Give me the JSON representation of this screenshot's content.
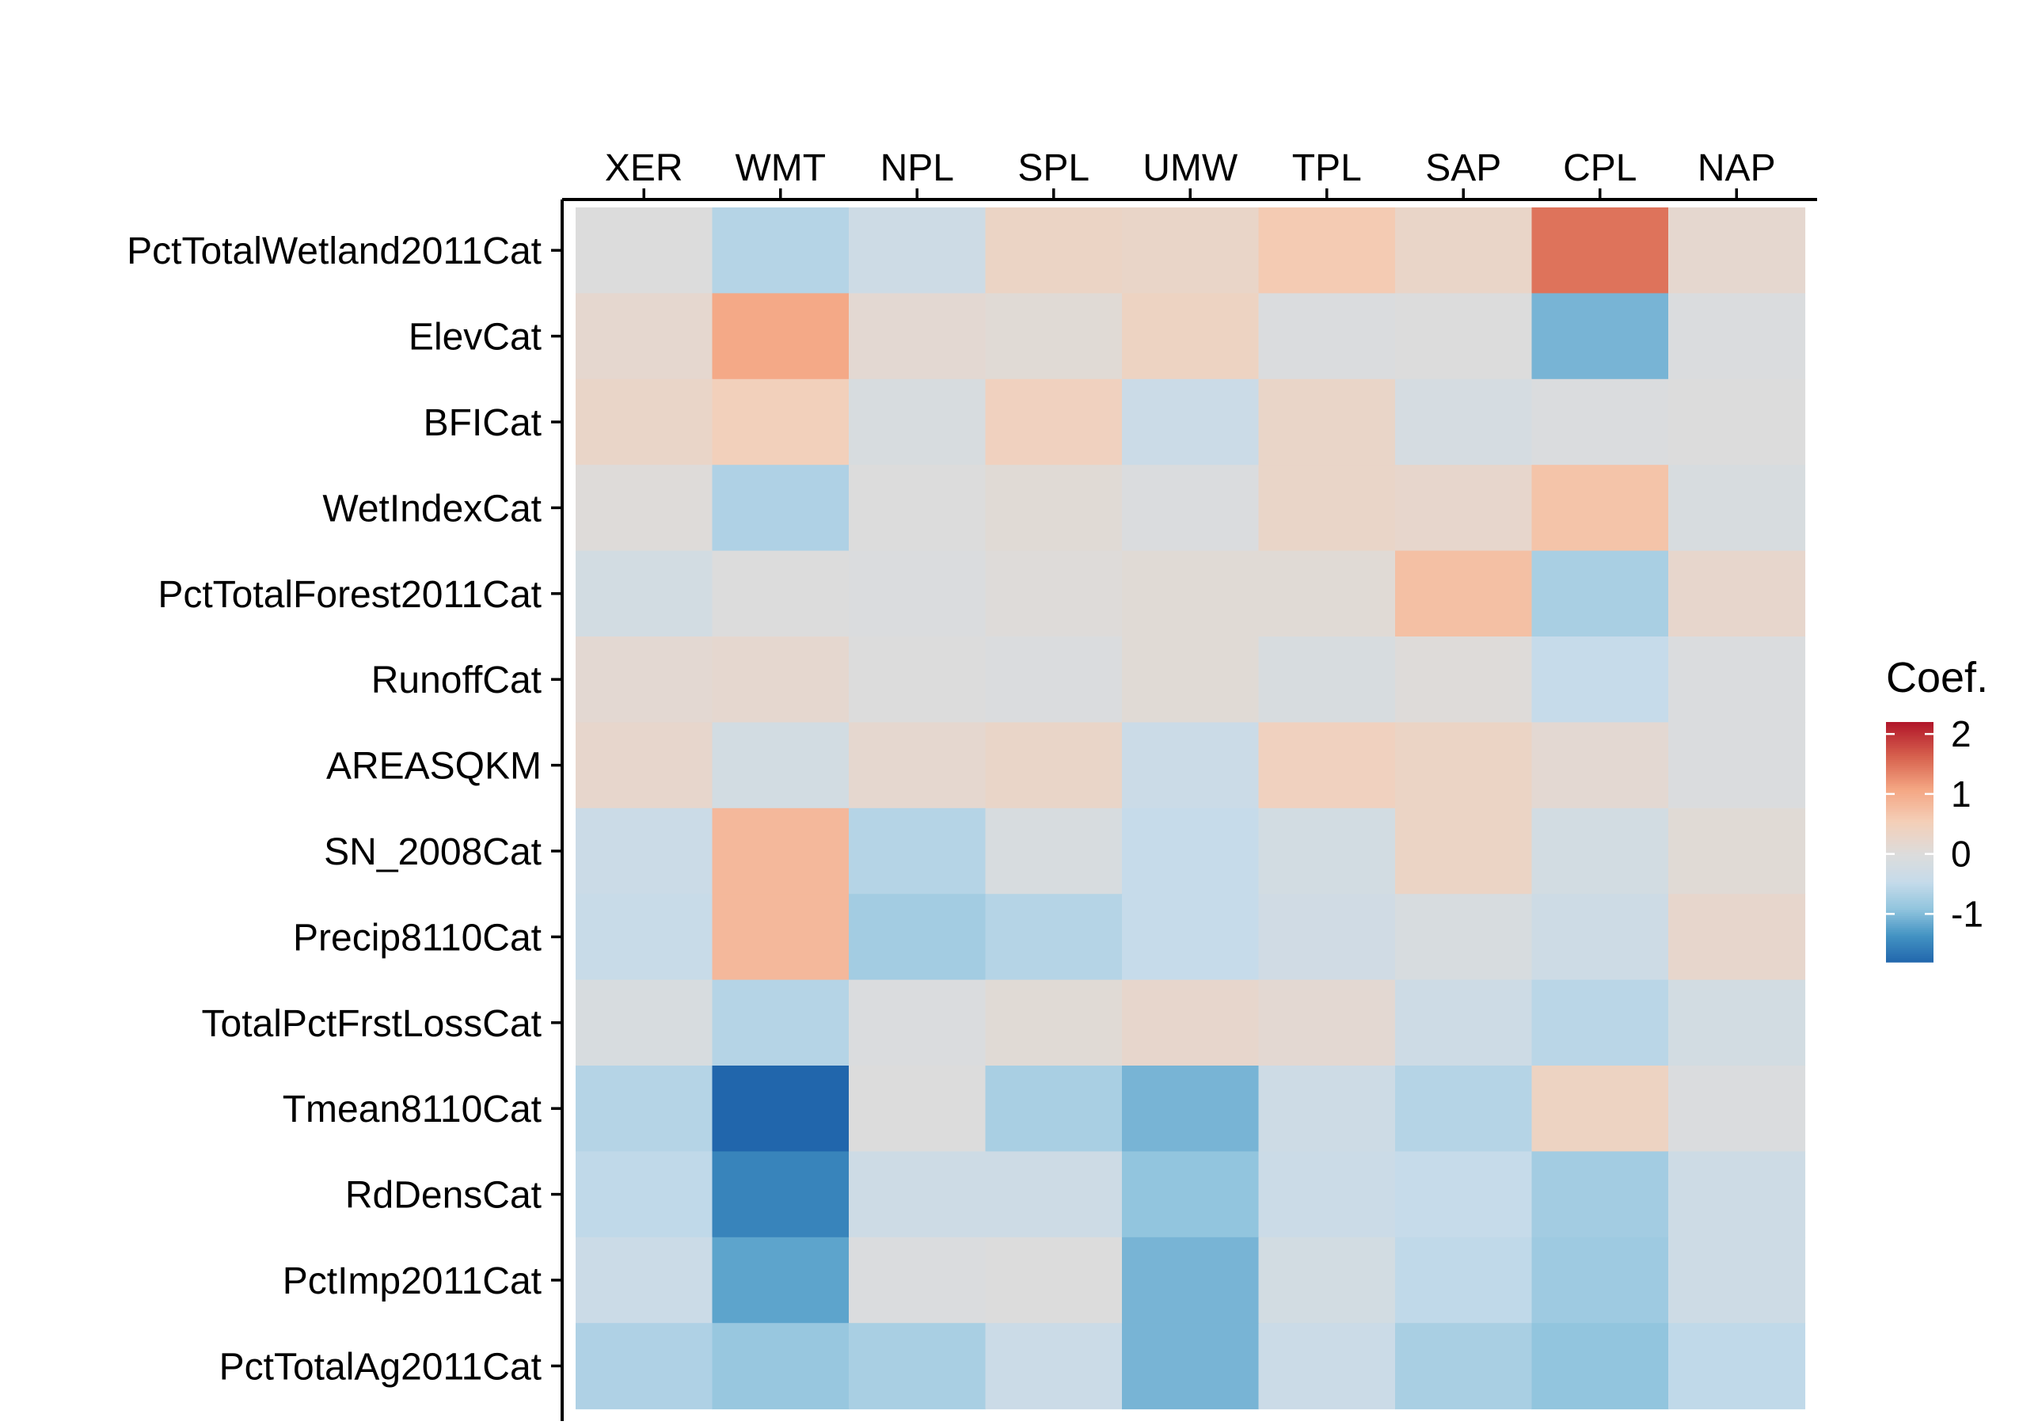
{
  "chart_data": {
    "type": "heatmap",
    "x_categories": [
      "XER",
      "WMT",
      "NPL",
      "SPL",
      "UMW",
      "TPL",
      "SAP",
      "CPL",
      "NAP"
    ],
    "y_categories": [
      "PctTotalWetland2011Cat",
      "ElevCat",
      "BFICat",
      "WetIndexCat",
      "PctTotalForest2011Cat",
      "RunoffCat",
      "AREASQKM",
      "SN_2008Cat",
      "Precip8110Cat",
      "TotalPctFrstLossCat",
      "Tmean8110Cat",
      "RdDensCat",
      "PctImp2011Cat",
      "PctTotalAg2011Cat"
    ],
    "values": [
      [
        0.0,
        -0.6,
        -0.3,
        0.35,
        0.3,
        0.6,
        0.3,
        1.5,
        0.2
      ],
      [
        0.2,
        1.05,
        0.15,
        0.1,
        0.4,
        -0.05,
        0.0,
        -1.05,
        -0.05
      ],
      [
        0.3,
        0.5,
        -0.1,
        0.45,
        -0.35,
        0.3,
        -0.15,
        -0.05,
        0.0
      ],
      [
        0.05,
        -0.65,
        0.0,
        0.1,
        -0.05,
        0.3,
        0.25,
        0.7,
        -0.1
      ],
      [
        -0.2,
        0.0,
        -0.05,
        0.05,
        0.1,
        0.1,
        0.75,
        -0.7,
        0.25
      ],
      [
        0.15,
        0.2,
        0.0,
        -0.05,
        0.1,
        -0.1,
        0.05,
        -0.45,
        -0.05
      ],
      [
        0.25,
        -0.2,
        0.2,
        0.3,
        -0.35,
        0.45,
        0.35,
        0.15,
        -0.05
      ],
      [
        -0.35,
        0.85,
        -0.6,
        -0.1,
        -0.45,
        -0.2,
        0.35,
        -0.2,
        0.1
      ],
      [
        -0.4,
        0.85,
        -0.75,
        -0.6,
        -0.45,
        -0.25,
        -0.1,
        -0.3,
        0.25
      ],
      [
        -0.1,
        -0.6,
        -0.05,
        0.1,
        0.25,
        0.15,
        -0.3,
        -0.55,
        -0.2
      ],
      [
        -0.6,
        -1.8,
        0.0,
        -0.7,
        -1.05,
        -0.3,
        -0.6,
        0.4,
        -0.05
      ],
      [
        -0.5,
        -1.5,
        -0.3,
        -0.3,
        -0.9,
        -0.35,
        -0.45,
        -0.75,
        -0.3
      ],
      [
        -0.35,
        -1.2,
        -0.05,
        0.0,
        -1.05,
        -0.2,
        -0.5,
        -0.8,
        -0.3
      ],
      [
        -0.65,
        -0.85,
        -0.7,
        -0.35,
        -1.05,
        -0.35,
        -0.7,
        -0.9,
        -0.5
      ]
    ],
    "legend": {
      "title": "Coef.",
      "min": -1.8,
      "max": 2.2,
      "ticks": [
        2,
        1,
        0,
        -1
      ],
      "tick_labels": [
        "2",
        "1",
        "0",
        "-1"
      ],
      "placement": "right"
    },
    "xlabel": "",
    "ylabel": "",
    "colors": {
      "low": "#2166ac",
      "mid": "#dcdcdc",
      "high": "#b2182b"
    }
  }
}
